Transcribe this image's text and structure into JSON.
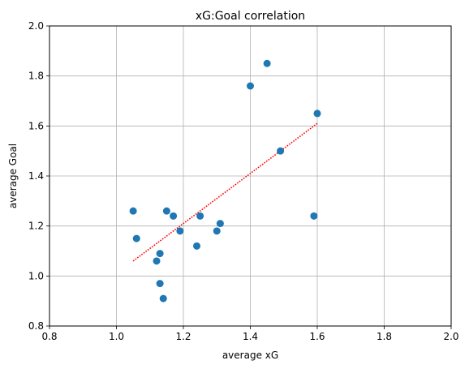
{
  "chart_data": {
    "type": "scatter",
    "title": "xG:Goal correlation",
    "xlabel": "average xG",
    "ylabel": "average Goal",
    "xlim": [
      0.8,
      2.0
    ],
    "ylim": [
      0.8,
      2.0
    ],
    "xticks": [
      "0.8",
      "1.0",
      "1.2",
      "1.4",
      "1.6",
      "1.8",
      "2.0"
    ],
    "yticks": [
      "0.8",
      "1.0",
      "1.2",
      "1.4",
      "1.6",
      "1.8",
      "2.0"
    ],
    "grid": true,
    "points": [
      {
        "x": 1.05,
        "y": 1.26
      },
      {
        "x": 1.06,
        "y": 1.15
      },
      {
        "x": 1.12,
        "y": 1.06
      },
      {
        "x": 1.13,
        "y": 1.09
      },
      {
        "x": 1.13,
        "y": 0.97
      },
      {
        "x": 1.14,
        "y": 0.91
      },
      {
        "x": 1.15,
        "y": 1.26
      },
      {
        "x": 1.17,
        "y": 1.24
      },
      {
        "x": 1.19,
        "y": 1.18
      },
      {
        "x": 1.24,
        "y": 1.12
      },
      {
        "x": 1.25,
        "y": 1.24
      },
      {
        "x": 1.3,
        "y": 1.18
      },
      {
        "x": 1.31,
        "y": 1.21
      },
      {
        "x": 1.4,
        "y": 1.76
      },
      {
        "x": 1.45,
        "y": 1.85
      },
      {
        "x": 1.49,
        "y": 1.5
      },
      {
        "x": 1.59,
        "y": 1.24
      },
      {
        "x": 1.6,
        "y": 1.65
      }
    ],
    "trendline": {
      "x1": 1.05,
      "y1": 1.06,
      "x2": 1.6,
      "y2": 1.61,
      "style": "dotted"
    },
    "colors": {
      "points": "#1f77b4",
      "trendline": "#ff0000",
      "grid": "#b0b0b0"
    }
  }
}
